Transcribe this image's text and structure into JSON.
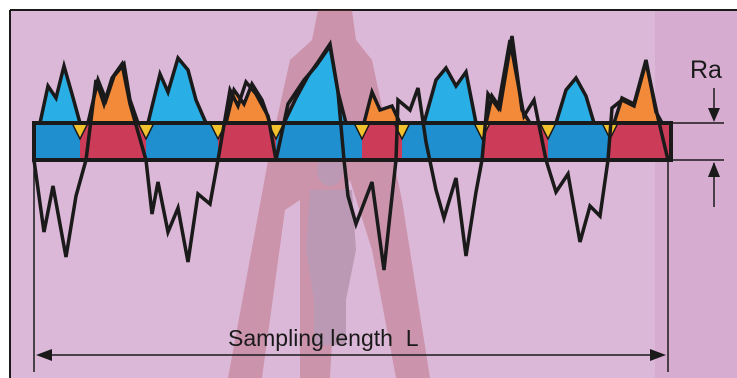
{
  "diagram": {
    "ra_label": "Ra",
    "sampling_label": "Sampling length  L",
    "colors": {
      "background": "#dcb8d8",
      "frame": "#1a1a1a",
      "peak_blue": "#29aee6",
      "peak_orange": "#f28a3a",
      "band_blue": "#1f8fcf",
      "band_red": "#cc3b57",
      "band_yellow": "#f2c12e",
      "watermark": "#a23a3a"
    }
  }
}
